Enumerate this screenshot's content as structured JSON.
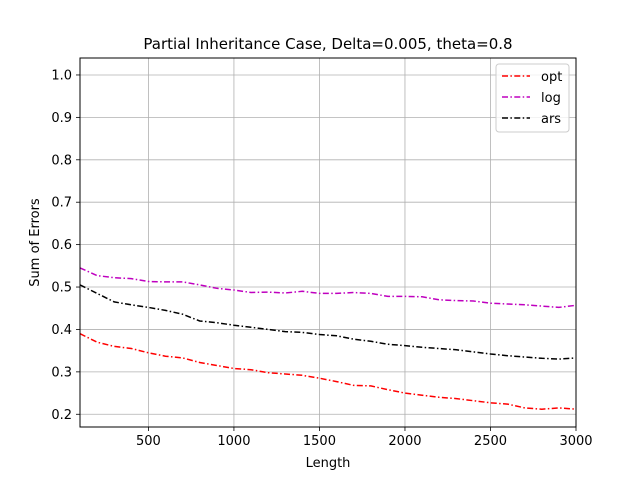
{
  "chart_data": {
    "type": "line",
    "title": "Partial Inheritance Case, Delta=0.005, theta=0.8",
    "xlabel": "Length",
    "ylabel": "Sum of Errors",
    "xlim": [
      100,
      3000
    ],
    "ylim": [
      0.17,
      1.04
    ],
    "xticks": [
      500,
      1000,
      1500,
      2000,
      2500,
      3000
    ],
    "yticks": [
      0.2,
      0.3,
      0.4,
      0.5,
      0.6,
      0.7,
      0.8,
      0.9,
      1.0
    ],
    "xtick_labels": [
      "500",
      "1000",
      "1500",
      "2000",
      "2500",
      "3000"
    ],
    "ytick_labels": [
      "0.2",
      "0.3",
      "0.4",
      "0.5",
      "0.6",
      "0.7",
      "0.8",
      "0.9",
      "1.0"
    ],
    "grid": true,
    "legend_position": "top-right",
    "series": [
      {
        "name": "opt",
        "color": "#ff0000",
        "linestyle": "dashdot",
        "x": [
          100,
          200,
          300,
          400,
          500,
          600,
          700,
          800,
          900,
          1000,
          1100,
          1200,
          1300,
          1400,
          1500,
          1600,
          1700,
          1800,
          1900,
          2000,
          2100,
          2200,
          2300,
          2400,
          2500,
          2600,
          2700,
          2800,
          2900,
          3000
        ],
        "y": [
          0.39,
          0.37,
          0.36,
          0.355,
          0.345,
          0.337,
          0.333,
          0.322,
          0.315,
          0.308,
          0.305,
          0.298,
          0.295,
          0.292,
          0.285,
          0.277,
          0.268,
          0.267,
          0.258,
          0.25,
          0.245,
          0.24,
          0.237,
          0.232,
          0.227,
          0.224,
          0.215,
          0.212,
          0.215,
          0.212
        ]
      },
      {
        "name": "log",
        "color": "#bf00bf",
        "linestyle": "dashdot",
        "x": [
          100,
          200,
          300,
          400,
          500,
          600,
          700,
          800,
          900,
          1000,
          1100,
          1200,
          1300,
          1400,
          1500,
          1600,
          1700,
          1800,
          1900,
          2000,
          2100,
          2200,
          2300,
          2400,
          2500,
          2600,
          2700,
          2800,
          2900,
          3000
        ],
        "y": [
          0.545,
          0.527,
          0.522,
          0.52,
          0.513,
          0.512,
          0.512,
          0.505,
          0.497,
          0.493,
          0.487,
          0.488,
          0.486,
          0.49,
          0.485,
          0.485,
          0.487,
          0.485,
          0.478,
          0.478,
          0.477,
          0.47,
          0.468,
          0.467,
          0.462,
          0.46,
          0.458,
          0.455,
          0.452,
          0.457
        ]
      },
      {
        "name": "ars",
        "color": "#000000",
        "linestyle": "dashdot",
        "x": [
          100,
          200,
          300,
          400,
          500,
          600,
          700,
          800,
          900,
          1000,
          1100,
          1200,
          1300,
          1400,
          1500,
          1600,
          1700,
          1800,
          1900,
          2000,
          2100,
          2200,
          2300,
          2400,
          2500,
          2600,
          2700,
          2800,
          2900,
          3000
        ],
        "y": [
          0.505,
          0.485,
          0.465,
          0.458,
          0.452,
          0.445,
          0.436,
          0.42,
          0.416,
          0.41,
          0.405,
          0.4,
          0.395,
          0.393,
          0.388,
          0.385,
          0.377,
          0.372,
          0.365,
          0.362,
          0.358,
          0.355,
          0.352,
          0.347,
          0.342,
          0.338,
          0.335,
          0.332,
          0.33,
          0.333
        ]
      }
    ]
  }
}
